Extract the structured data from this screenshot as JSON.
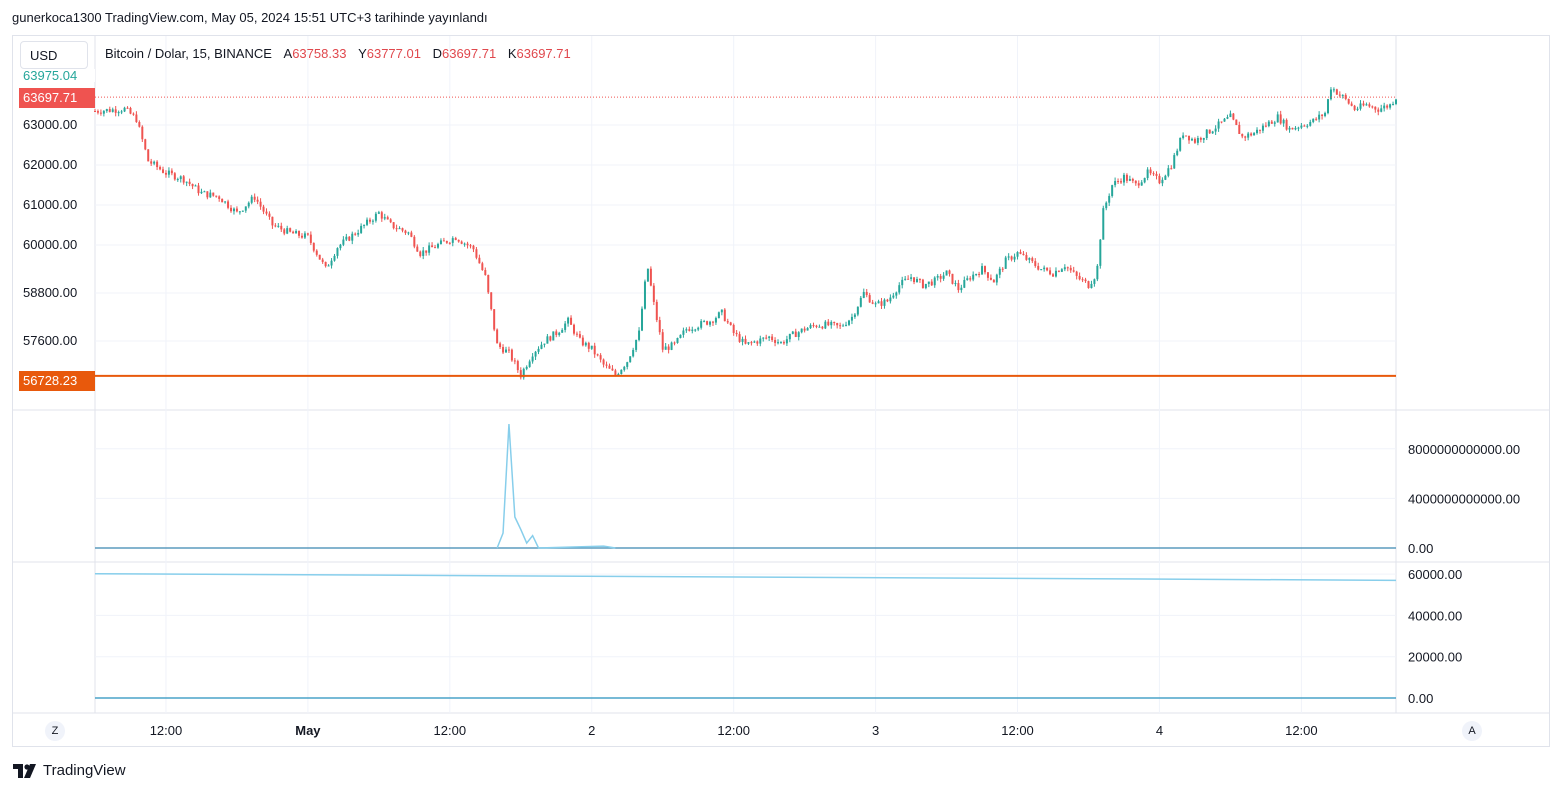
{
  "header": {
    "publish_text": "gunerkoca1300 TradingView.com, May 05, 2024 15:51 UTC+3 tarihinde yayınlandı"
  },
  "toolbar": {
    "currency_label": "USD"
  },
  "legend": {
    "symbol": "Bitcoin / Dolar, 15, BINANCE",
    "open_label": "A",
    "open_value": "63758.33",
    "high_label": "Y",
    "high_value": "63777.01",
    "low_label": "D",
    "low_value": "63697.71",
    "close_label": "K",
    "close_value": "63697.71"
  },
  "price_tags": {
    "top_partial": "63975.04",
    "current": "63697.71",
    "support": "56728.23",
    "current_color": "#ef5350",
    "support_color": "#e8590c"
  },
  "buttons": {
    "left_scale": "Z",
    "right_scale": "A"
  },
  "branding": {
    "logo": "TradingView"
  },
  "colors": {
    "up": "#26a69a",
    "down": "#ef5350",
    "indicator": "#87ceeb",
    "grid": "#f0f3fa"
  },
  "chart_data": [
    {
      "type": "candlestick",
      "title": "Bitcoin / Dolar, 15, BINANCE",
      "y_ticks": [
        "63000.00",
        "62000.00",
        "61000.00",
        "60000.00",
        "58800.00",
        "57600.00"
      ],
      "y_tick_values": [
        63000,
        62000,
        61000,
        60000,
        58800,
        57600
      ],
      "x_ticks": [
        "12:00",
        "May",
        "12:00",
        "2",
        "12:00",
        "3",
        "12:00",
        "4",
        "12:00"
      ],
      "x_tick_time_hours": [
        12,
        24,
        36,
        48,
        60,
        72,
        84,
        96,
        108
      ],
      "x_range_hours": [
        6,
        116
      ],
      "close_path": [
        [
          6,
          63350
        ],
        [
          8.5,
          63400
        ],
        [
          9.5,
          63150
        ],
        [
          10.5,
          62100
        ],
        [
          12,
          61800
        ],
        [
          13.5,
          61650
        ],
        [
          15,
          61300
        ],
        [
          16.5,
          61200
        ],
        [
          18,
          60800
        ],
        [
          19.5,
          61200
        ],
        [
          21,
          60500
        ],
        [
          22.5,
          60300
        ],
        [
          24,
          60200
        ],
        [
          25.5,
          59400
        ],
        [
          26.5,
          59950
        ],
        [
          28,
          60300
        ],
        [
          30,
          60800
        ],
        [
          31,
          60500
        ],
        [
          32.5,
          60300
        ],
        [
          33.5,
          59800
        ],
        [
          35,
          60000
        ],
        [
          36.5,
          60200
        ],
        [
          38,
          59900
        ],
        [
          39,
          59200
        ],
        [
          40,
          57500
        ],
        [
          41,
          57300
        ],
        [
          42,
          56750
        ],
        [
          43,
          57300
        ],
        [
          44,
          57600
        ],
        [
          45,
          57800
        ],
        [
          46,
          58100
        ],
        [
          47,
          57600
        ],
        [
          48,
          57400
        ],
        [
          49,
          57000
        ],
        [
          50,
          56750
        ],
        [
          51,
          57100
        ],
        [
          52,
          57800
        ],
        [
          52.7,
          59500
        ],
        [
          53.2,
          58600
        ],
        [
          54,
          57400
        ],
        [
          55,
          57500
        ],
        [
          56,
          57900
        ],
        [
          57,
          58000
        ],
        [
          58,
          58100
        ],
        [
          59,
          58300
        ],
        [
          60,
          57800
        ],
        [
          61,
          57500
        ],
        [
          62,
          57600
        ],
        [
          63,
          57700
        ],
        [
          64,
          57550
        ],
        [
          65,
          57750
        ],
        [
          66,
          57900
        ],
        [
          67,
          58000
        ],
        [
          68,
          58000
        ],
        [
          69,
          57950
        ],
        [
          70,
          58200
        ],
        [
          71,
          58800
        ],
        [
          72,
          58500
        ],
        [
          73,
          58600
        ],
        [
          74,
          59000
        ],
        [
          75,
          59200
        ],
        [
          76,
          59000
        ],
        [
          77,
          59100
        ],
        [
          78,
          59300
        ],
        [
          79,
          58900
        ],
        [
          80,
          59200
        ],
        [
          81,
          59400
        ],
        [
          82,
          59100
        ],
        [
          83,
          59600
        ],
        [
          84,
          59800
        ],
        [
          85,
          59600
        ],
        [
          86,
          59400
        ],
        [
          87,
          59300
        ],
        [
          88,
          59500
        ],
        [
          89,
          59200
        ],
        [
          90,
          59000
        ],
        [
          90.7,
          59300
        ],
        [
          91.2,
          60800
        ],
        [
          92,
          61500
        ],
        [
          93,
          61700
        ],
        [
          94,
          61500
        ],
        [
          95,
          61800
        ],
        [
          96,
          61600
        ],
        [
          97,
          62000
        ],
        [
          98,
          62800
        ],
        [
          99,
          62600
        ],
        [
          100,
          62800
        ],
        [
          101,
          63000
        ],
        [
          102,
          63200
        ],
        [
          103,
          62700
        ],
        [
          104,
          62800
        ],
        [
          105,
          63000
        ],
        [
          106,
          63200
        ],
        [
          107,
          62900
        ],
        [
          108,
          63000
        ],
        [
          109,
          63100
        ],
        [
          110,
          63300
        ],
        [
          110.5,
          63950
        ],
        [
          111.5,
          63700
        ],
        [
          112.5,
          63400
        ],
        [
          113.5,
          63500
        ],
        [
          114.5,
          63400
        ],
        [
          115.5,
          63500
        ],
        [
          116,
          63700
        ]
      ],
      "last_close": 63697.71,
      "support_level": 56728.23
    },
    {
      "type": "line",
      "y_ticks": [
        "8000000000000.00",
        "4000000000000.00",
        "0.00"
      ],
      "y_tick_values": [
        8000000000000,
        4000000000000,
        0
      ],
      "y_range": [
        0,
        10000000000000
      ],
      "peak_points": [
        [
          40.0,
          0
        ],
        [
          40.5,
          1200000000000
        ],
        [
          41,
          10000000000000
        ],
        [
          41.5,
          2500000000000
        ],
        [
          42,
          1500000000000
        ],
        [
          42.5,
          400000000000
        ],
        [
          43,
          1000000000000
        ],
        [
          43.5,
          0
        ],
        [
          49,
          150000000000
        ],
        [
          50,
          0
        ]
      ]
    },
    {
      "type": "line",
      "y_ticks": [
        "60000.00",
        "40000.00",
        "20000.00",
        "0.00"
      ],
      "y_tick_values": [
        60000,
        40000,
        20000,
        0
      ],
      "y_range": [
        0,
        62000
      ],
      "series": [
        {
          "values_start_end": [
            60200,
            57000
          ]
        },
        {
          "values_start_end": [
            0,
            0
          ]
        }
      ]
    }
  ]
}
